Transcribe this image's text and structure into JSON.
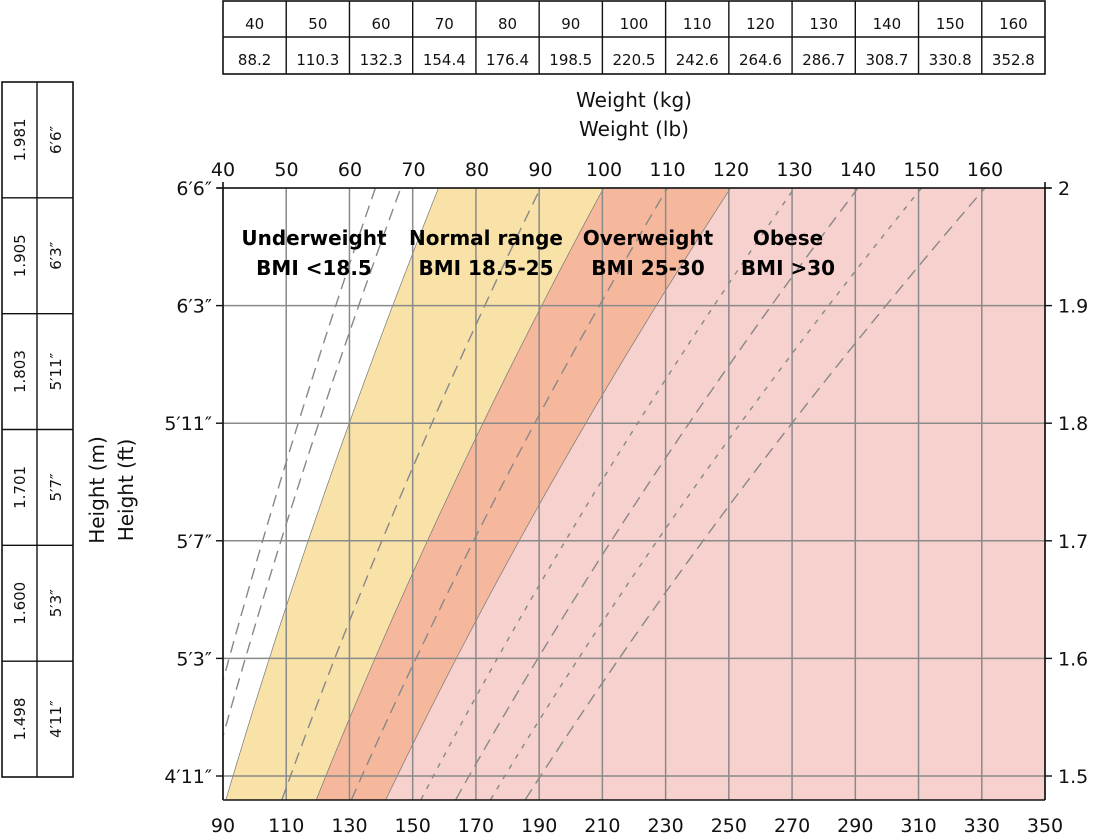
{
  "chart_data": {
    "type": "area",
    "top_axis_title_kg": "Weight (kg)",
    "top_axis_title_lb": "Weight (lb)",
    "left_axis_title_m": "Height (m)",
    "left_axis_title_ft": "Height (ft)",
    "kg_ticks": [
      40,
      50,
      60,
      70,
      80,
      90,
      100,
      110,
      120,
      130,
      140,
      150,
      160
    ],
    "lb_ticks": [
      90,
      110,
      130,
      150,
      170,
      190,
      210,
      230,
      250,
      270,
      290,
      310,
      330,
      350
    ],
    "m_ticks": [
      2,
      1.9,
      1.8,
      1.7,
      1.6,
      1.5
    ],
    "m_tick_labels": [
      "2",
      "1.9",
      "1.8",
      "1.7",
      "1.6",
      "1.5"
    ],
    "ft_tick_labels": [
      "6′6″",
      "6′3″",
      "5′11″",
      "5′7″",
      "5′3″",
      "4′11″"
    ],
    "xlim_kg": [
      40,
      170
    ],
    "xlim_lb": [
      90,
      350
    ],
    "ylim_m": [
      1.48,
      2.0
    ],
    "grid": true,
    "categories": [
      {
        "name": "Underweight",
        "range": "BMI <18.5",
        "bmi_min": 0,
        "bmi_max": 18.5,
        "color": "#ffffff"
      },
      {
        "name": "Normal range",
        "range": "BMI 18.5-25",
        "bmi_min": 18.5,
        "bmi_max": 25,
        "color": "#f8e2a8"
      },
      {
        "name": "Overweight",
        "range": "BMI 25-30",
        "bmi_min": 25,
        "bmi_max": 30,
        "color": "#f6b89c"
      },
      {
        "name": "Obese",
        "range": "BMI >30",
        "bmi_min": 30,
        "bmi_max": null,
        "color": "#f7d1cd"
      }
    ],
    "bmi_reference_lines": [
      {
        "bmi": 16,
        "style": "long-dash"
      },
      {
        "bmi": 17,
        "style": "long-dash"
      },
      {
        "bmi": 22.5,
        "style": "long-dash"
      },
      {
        "bmi": 27.5,
        "style": "long-dash"
      },
      {
        "bmi": 32.5,
        "style": "short-dash"
      },
      {
        "bmi": 35,
        "style": "long-dash"
      },
      {
        "bmi": 37.5,
        "style": "short-dash"
      },
      {
        "bmi": 40,
        "style": "long-dash"
      }
    ]
  },
  "weight_table": {
    "kg": [
      "40",
      "50",
      "60",
      "70",
      "80",
      "90",
      "100",
      "110",
      "120",
      "130",
      "140",
      "150",
      "160"
    ],
    "lb": [
      "88.2",
      "110.3",
      "132.3",
      "154.4",
      "176.4",
      "198.5",
      "220.5",
      "242.6",
      "264.6",
      "286.7",
      "308.7",
      "330.8",
      "352.8"
    ]
  },
  "height_table": {
    "m": [
      "1.981",
      "1.905",
      "1.803",
      "1.701",
      "1.600",
      "1.498"
    ],
    "ft": [
      "6′6″",
      "6′3″",
      "5′11″",
      "5′7″",
      "5′3″",
      "4′11″"
    ]
  }
}
